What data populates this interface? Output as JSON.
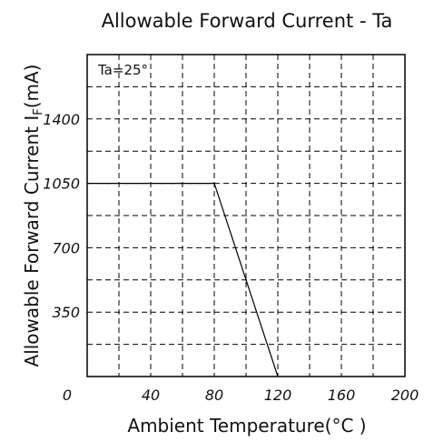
{
  "chart_data": {
    "type": "line",
    "title": "Allowable Forward Current - Ta",
    "xlabel": "Ambient Temperature(°C )",
    "ylabel": "Allowable Forward Current I F(mA)",
    "ylabel_main": "Allowable Forward Current I",
    "ylabel_sub": "F",
    "ylabel_unit": "(mA)",
    "xlim": [
      0,
      200
    ],
    "ylim": [
      0,
      1750
    ],
    "x_ticks": [
      0,
      40,
      80,
      120,
      160,
      200
    ],
    "x_tick_labels": [
      "0",
      "40",
      "80",
      "120",
      "160",
      "200"
    ],
    "y_ticks": [
      350,
      700,
      1050,
      1400
    ],
    "y_tick_labels": [
      "350",
      "700",
      "1050",
      "1400"
    ],
    "x_grid": [
      20,
      40,
      60,
      80,
      100,
      120,
      140,
      160,
      180
    ],
    "y_grid": [
      175,
      350,
      525,
      700,
      875,
      1050,
      1225,
      1400,
      1575
    ],
    "grid": true,
    "annotation": "Ta=25°",
    "series": [
      {
        "x": [
          0,
          80,
          120
        ],
        "y": [
          1050,
          1050,
          0
        ]
      }
    ]
  }
}
